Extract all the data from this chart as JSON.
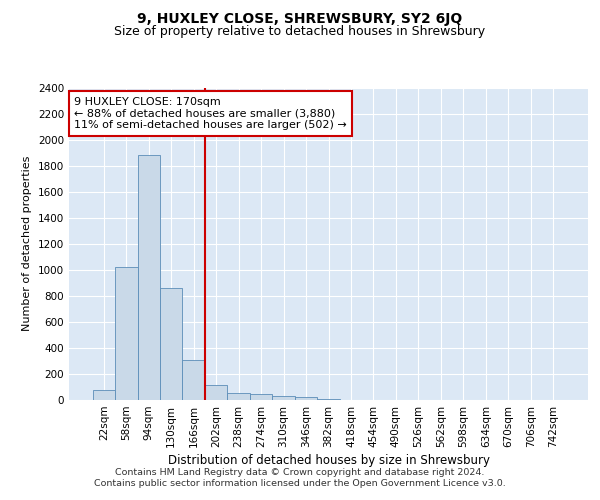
{
  "title1": "9, HUXLEY CLOSE, SHREWSBURY, SY2 6JQ",
  "title2": "Size of property relative to detached houses in Shrewsbury",
  "xlabel": "Distribution of detached houses by size in Shrewsbury",
  "ylabel": "Number of detached properties",
  "footnote1": "Contains HM Land Registry data © Crown copyright and database right 2024.",
  "footnote2": "Contains public sector information licensed under the Open Government Licence v3.0.",
  "categories": [
    "22sqm",
    "58sqm",
    "94sqm",
    "130sqm",
    "166sqm",
    "202sqm",
    "238sqm",
    "274sqm",
    "310sqm",
    "346sqm",
    "382sqm",
    "418sqm",
    "454sqm",
    "490sqm",
    "526sqm",
    "562sqm",
    "598sqm",
    "634sqm",
    "670sqm",
    "706sqm",
    "742sqm"
  ],
  "values": [
    80,
    1020,
    1880,
    860,
    310,
    115,
    55,
    45,
    30,
    20,
    5,
    3,
    0,
    0,
    0,
    0,
    0,
    0,
    0,
    0,
    0
  ],
  "bar_color": "#c9d9e8",
  "bar_edge_color": "#5b8db8",
  "vline_color": "#cc0000",
  "annotation_line1": "9 HUXLEY CLOSE: 170sqm",
  "annotation_line2": "← 88% of detached houses are smaller (3,880)",
  "annotation_line3": "11% of semi-detached houses are larger (502) →",
  "annotation_box_color": "white",
  "annotation_box_edge": "#cc0000",
  "ylim": [
    0,
    2400
  ],
  "yticks": [
    0,
    200,
    400,
    600,
    800,
    1000,
    1200,
    1400,
    1600,
    1800,
    2000,
    2200,
    2400
  ],
  "background_color": "#dce8f5",
  "grid_color": "white",
  "title1_fontsize": 10,
  "title2_fontsize": 9,
  "xlabel_fontsize": 8.5,
  "ylabel_fontsize": 8,
  "tick_fontsize": 7.5,
  "footnote_fontsize": 6.8,
  "annotation_fontsize": 8
}
